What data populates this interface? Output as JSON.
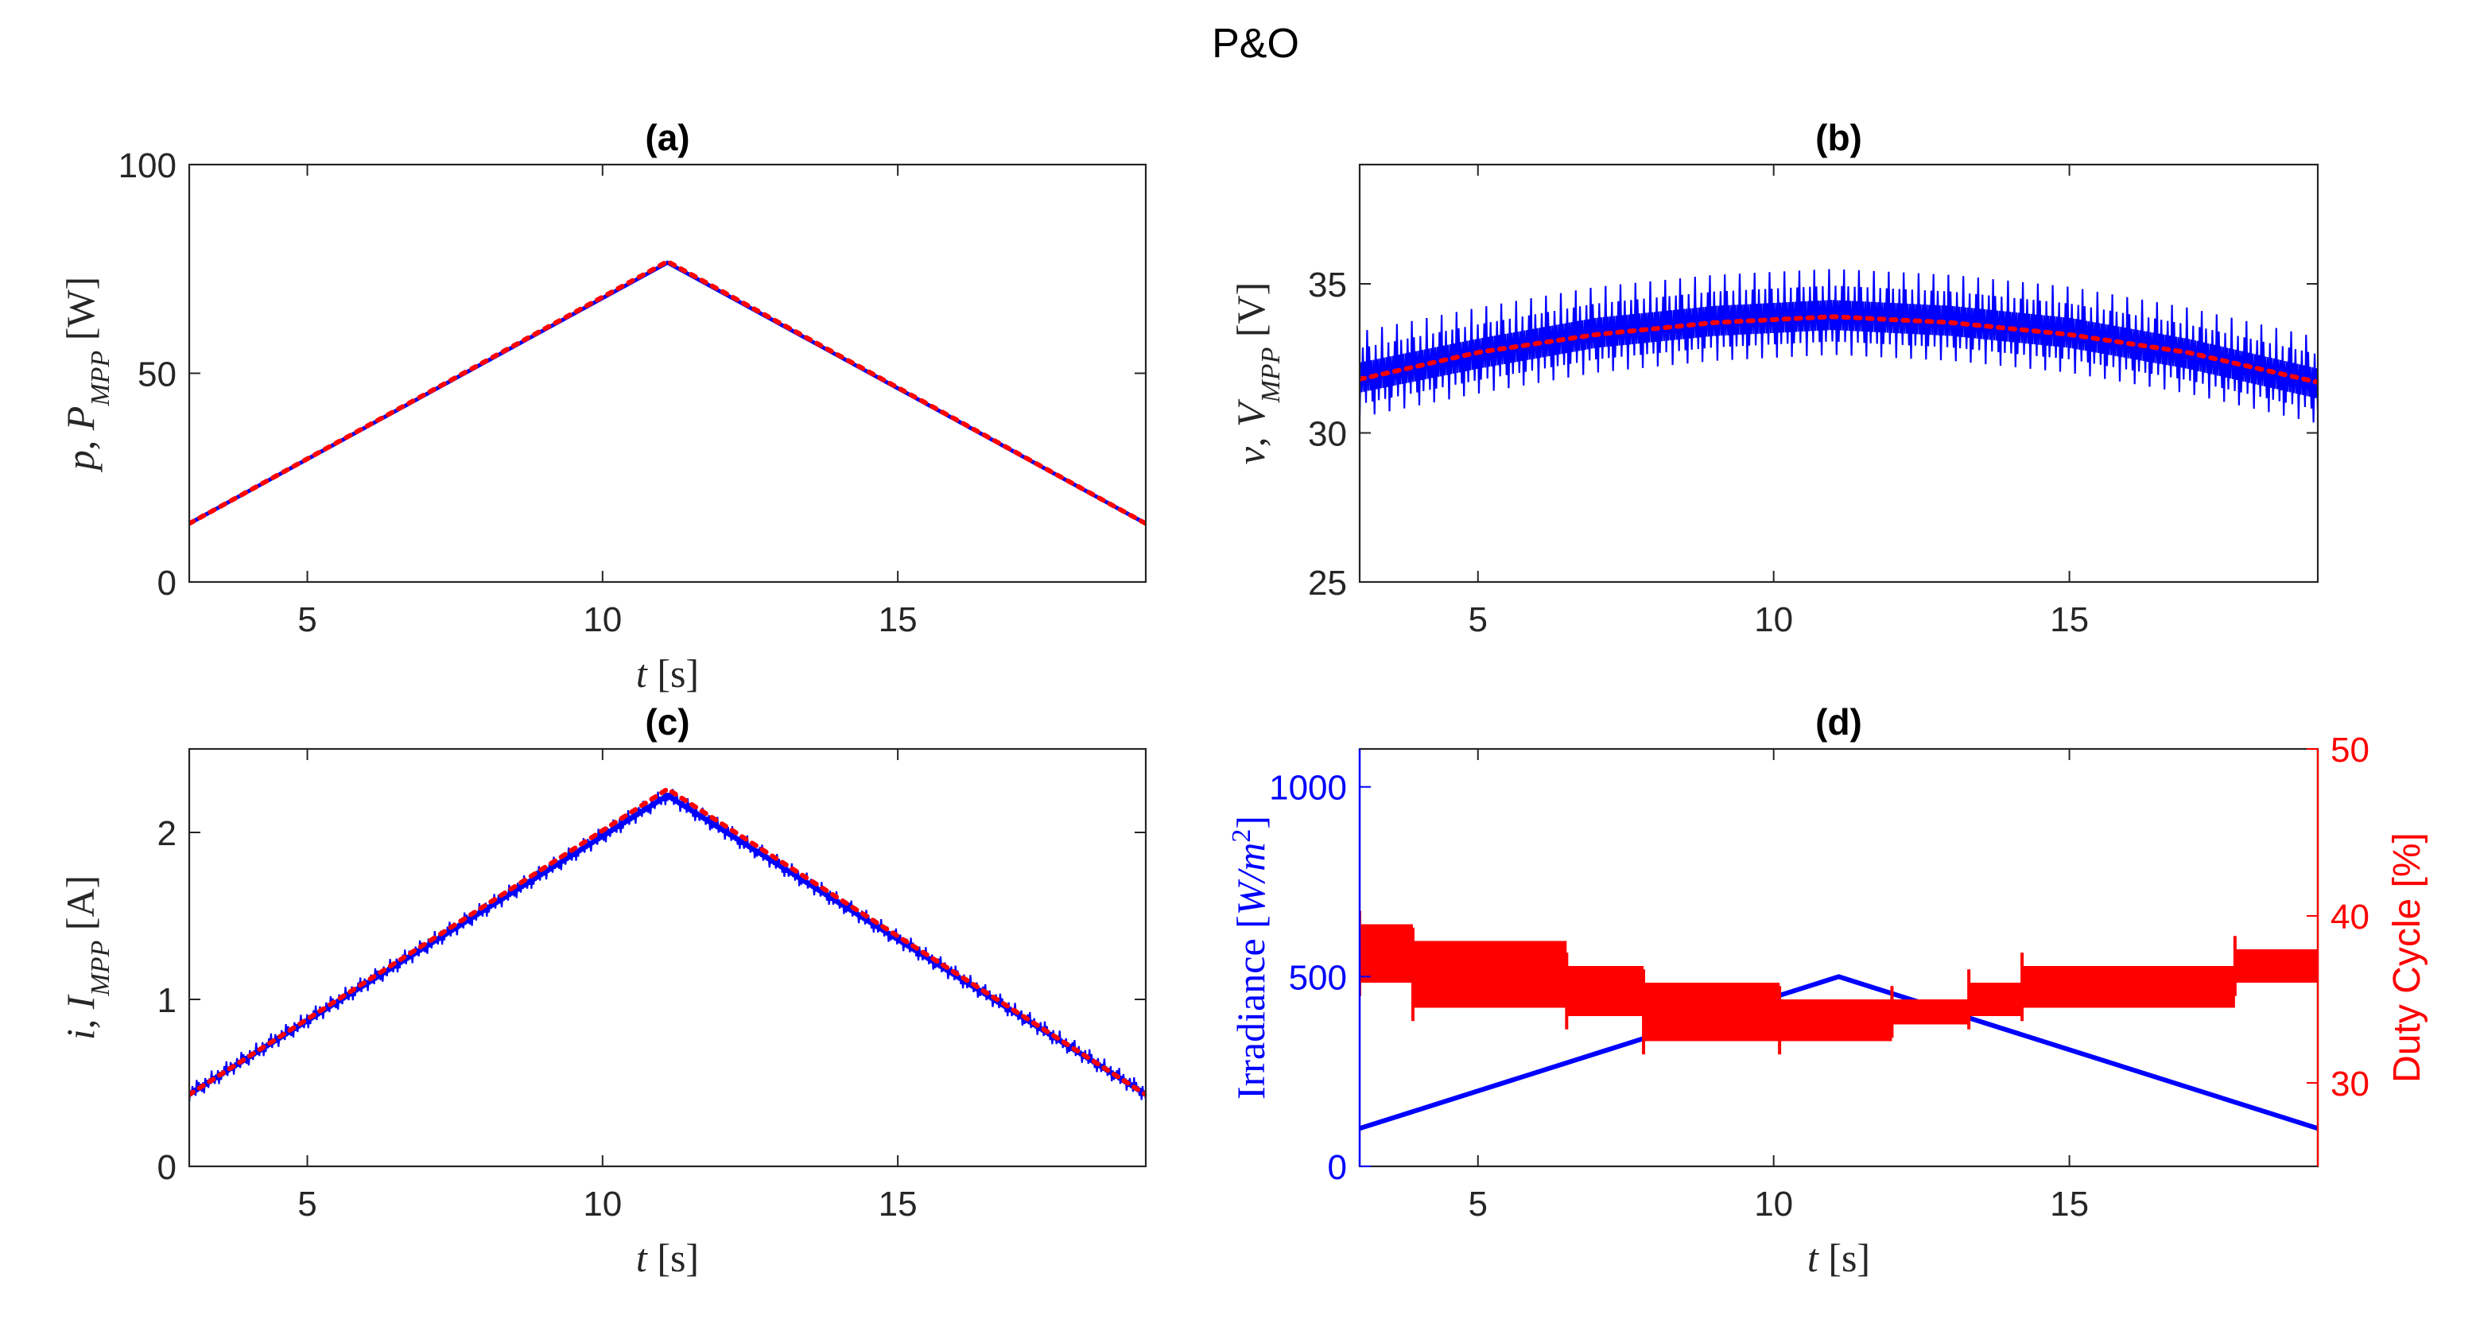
{
  "figure_title": "P&O",
  "chart_data": [
    {
      "id": "a",
      "type": "line",
      "title": "(a)",
      "xlabel": "t [s]",
      "ylabel": "p, P_MPP [W]",
      "xlim": [
        3,
        19.2
      ],
      "ylim": [
        0,
        100
      ],
      "xticks": [
        5,
        10,
        15
      ],
      "yticks": [
        0,
        50,
        100
      ],
      "series": [
        {
          "name": "p",
          "style": "solid",
          "color": "#0000ff",
          "x": [
            3,
            11.1,
            19.2
          ],
          "y": [
            14,
            76.5,
            14
          ]
        },
        {
          "name": "P_MPP",
          "style": "dotted",
          "color": "#ff0000",
          "x": [
            3,
            11.1,
            19.2
          ],
          "y": [
            14,
            76.8,
            14
          ]
        }
      ]
    },
    {
      "id": "b",
      "type": "line",
      "title": "(b)",
      "xlabel": "",
      "ylabel": "v, V_MPP [V]",
      "xlim": [
        3,
        19.2
      ],
      "ylim": [
        25,
        39
      ],
      "xticks": [
        5,
        10,
        15
      ],
      "yticks": [
        25,
        30,
        35
      ],
      "series": [
        {
          "name": "v",
          "style": "ripple",
          "color": "#0000ff",
          "x": [
            3,
            5,
            7,
            9,
            11,
            13,
            15,
            17,
            19.2
          ],
          "y": [
            31.8,
            32.6,
            33.3,
            33.7,
            33.9,
            33.7,
            33.3,
            32.6,
            31.6
          ],
          "ripple_amplitude": 1.6
        },
        {
          "name": "V_MPP",
          "style": "dotted",
          "color": "#ff0000",
          "x": [
            3,
            5,
            7,
            9,
            11,
            13,
            15,
            17,
            19.2
          ],
          "y": [
            31.8,
            32.7,
            33.3,
            33.7,
            33.9,
            33.7,
            33.3,
            32.7,
            31.7
          ]
        }
      ]
    },
    {
      "id": "c",
      "type": "line",
      "title": "(c)",
      "xlabel": "t [s]",
      "ylabel": "i, I_MPP [A]",
      "xlim": [
        3,
        19.2
      ],
      "ylim": [
        0,
        2.5
      ],
      "xticks": [
        5,
        10,
        15
      ],
      "yticks": [
        0,
        1,
        2
      ],
      "series": [
        {
          "name": "i",
          "style": "ripple",
          "color": "#0000ff",
          "x": [
            3,
            11.1,
            19.2
          ],
          "y": [
            0.43,
            2.22,
            0.43
          ],
          "ripple_amplitude": 0.06
        },
        {
          "name": "I_MPP",
          "style": "dotted",
          "color": "#ff0000",
          "x": [
            3,
            11.1,
            19.2
          ],
          "y": [
            0.43,
            2.26,
            0.43
          ]
        }
      ]
    },
    {
      "id": "d",
      "type": "line",
      "title": "(d)",
      "xlabel": "t [s]",
      "ylabel": "Irradiance [W/m^2]",
      "ylabel_right": "Duty Cycle [%]",
      "xlim": [
        3,
        19.2
      ],
      "ylim": [
        0,
        1100
      ],
      "ylim_right": [
        25,
        50
      ],
      "xticks": [
        5,
        10,
        15
      ],
      "yticks": [
        0,
        500,
        1000
      ],
      "yticks_right": [
        30,
        40,
        50
      ],
      "series": [
        {
          "name": "Irradiance",
          "axis": "left",
          "style": "solid",
          "color": "#0000ff",
          "x": [
            3,
            11.1,
            19.2
          ],
          "y": [
            100,
            500,
            100
          ]
        },
        {
          "name": "Duty Cycle",
          "axis": "right",
          "style": "step-band",
          "color": "#ff0000",
          "segments": [
            {
              "x0": 3.0,
              "x1": 3.9,
              "lo": 36.0,
              "hi": 39.5
            },
            {
              "x0": 3.9,
              "x1": 6.5,
              "lo": 34.5,
              "hi": 38.5
            },
            {
              "x0": 6.5,
              "x1": 7.8,
              "lo": 34.0,
              "hi": 37.0
            },
            {
              "x0": 7.8,
              "x1": 10.1,
              "lo": 32.5,
              "hi": 36.0
            },
            {
              "x0": 10.1,
              "x1": 12.0,
              "lo": 32.5,
              "hi": 35.0
            },
            {
              "x0": 12.0,
              "x1": 13.3,
              "lo": 33.5,
              "hi": 35.0
            },
            {
              "x0": 13.3,
              "x1": 14.2,
              "lo": 34.0,
              "hi": 36.0
            },
            {
              "x0": 14.2,
              "x1": 17.8,
              "lo": 34.5,
              "hi": 37.0
            },
            {
              "x0": 17.8,
              "x1": 19.2,
              "lo": 36.0,
              "hi": 38.0
            }
          ]
        }
      ]
    }
  ]
}
